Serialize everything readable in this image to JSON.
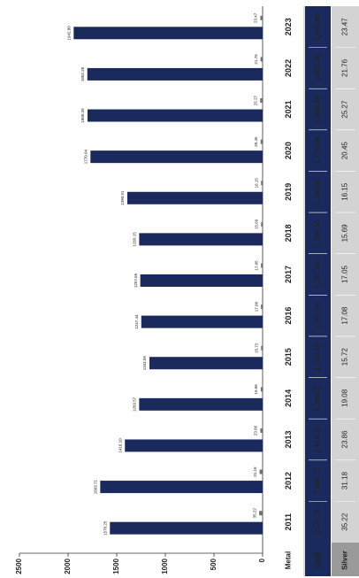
{
  "chart_data": {
    "type": "bar",
    "categories": [
      "2011",
      "2012",
      "2013",
      "2014",
      "2015",
      "2016",
      "2017",
      "2018",
      "2019",
      "2020",
      "2021",
      "2022",
      "2023"
    ],
    "series": [
      {
        "name": "Gold",
        "color": "#1b2a5c",
        "values": [
          1570.25,
          1669.71,
          1416.1,
          1269.57,
          1163.59,
          1247.44,
          1257.65,
          1269.15,
          1390.91,
          1770.04,
          1800.39,
          1802.28,
          1942.8
        ],
        "value_labels": [
          "1570.25",
          "1669.71",
          "1416.10",
          "1269.57",
          "1163.59",
          "1247.44",
          "1257.65",
          "1269.15",
          "1390.91",
          "1770.04",
          "1800.39",
          "1802.28",
          "1942.80"
        ],
        "table_labels": [
          "1,570.25",
          "1,669.71",
          "1,416.10",
          "1,269.57",
          "1,163.59",
          "1,247.44",
          "1,257.65",
          "1,269.15",
          "1,390.91",
          "1,770.04",
          "1,800.39",
          "1,802.28",
          "1,942.80"
        ]
      },
      {
        "name": "Silver",
        "color": "#6f6f6f",
        "values": [
          35.22,
          31.18,
          23.86,
          19.08,
          15.72,
          17.08,
          17.05,
          15.69,
          16.15,
          20.45,
          25.27,
          21.76,
          23.47
        ],
        "value_labels": [
          "35.22",
          "31.18",
          "23.86",
          "19.08",
          "15.72",
          "17.08",
          "17.05",
          "15.69",
          "16.15",
          "20.45",
          "25.27",
          "21.76",
          "23.47"
        ]
      }
    ],
    "table_header": "Metal",
    "ylim": [
      0,
      2500
    ],
    "yticks": [
      0,
      500,
      1000,
      1500,
      2000,
      2500
    ],
    "grid": false
  }
}
